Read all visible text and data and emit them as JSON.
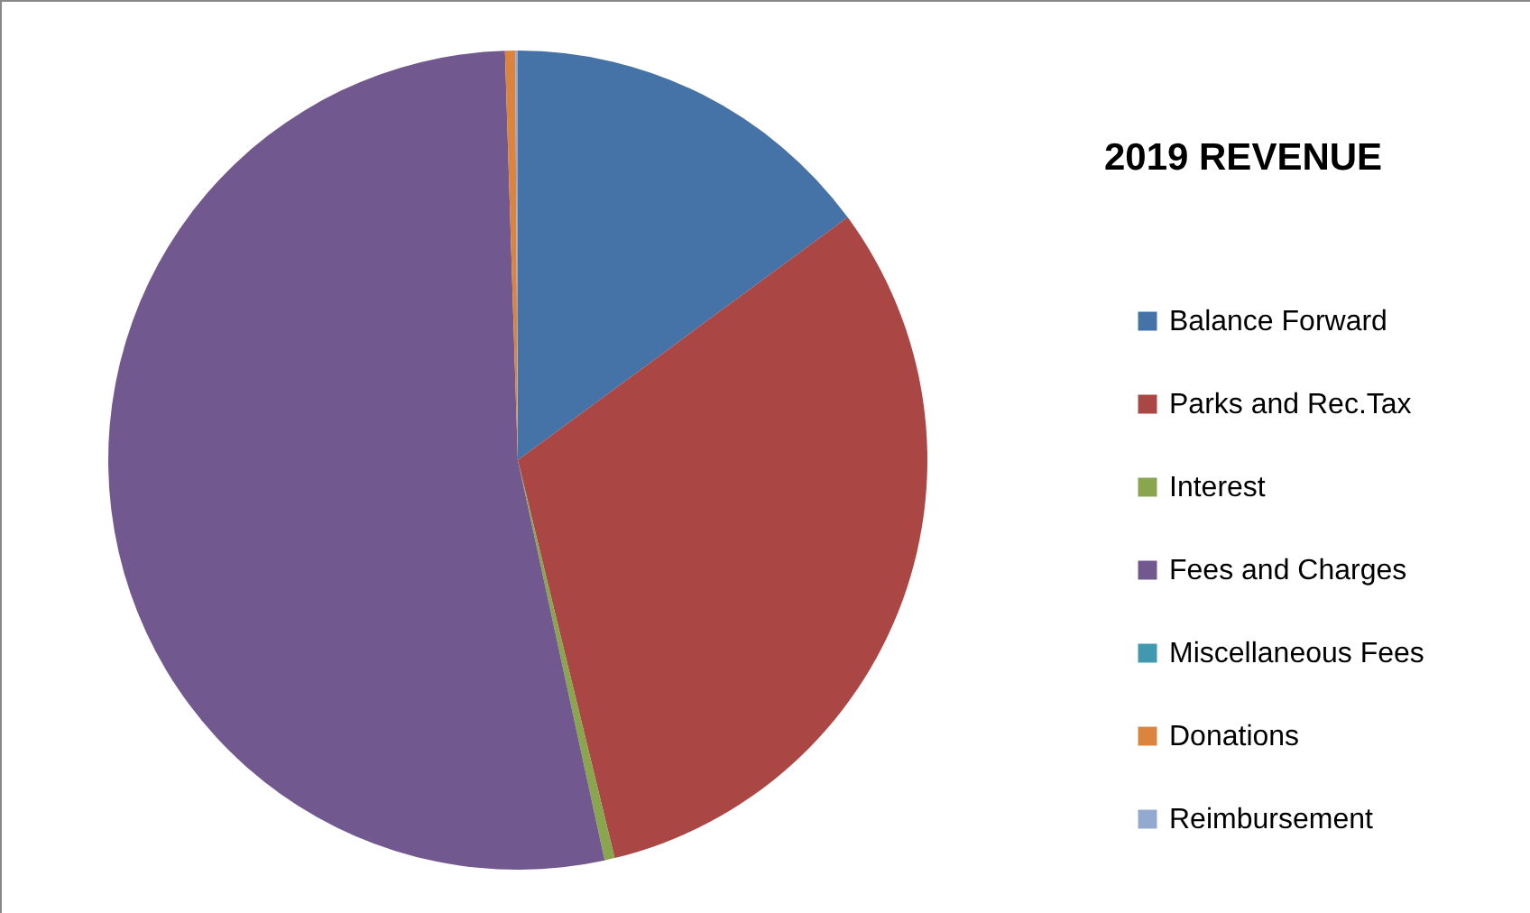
{
  "chart_data": {
    "type": "pie",
    "title": "2019 REVENUE",
    "categories": [
      "Balance Forward",
      "Parks and Rec.Tax",
      "Interest",
      "Fees and Charges",
      "Miscellaneous Fees",
      "Donations",
      "Reimbursement"
    ],
    "values": [
      14.9,
      31.3,
      0.4,
      52.9,
      0,
      0.4,
      0.1
    ],
    "colors": [
      "#4572a7",
      "#aa4643",
      "#89a54e",
      "#71588f",
      "#4198af",
      "#db843d",
      "#93a9cf"
    ],
    "legend": "right"
  }
}
